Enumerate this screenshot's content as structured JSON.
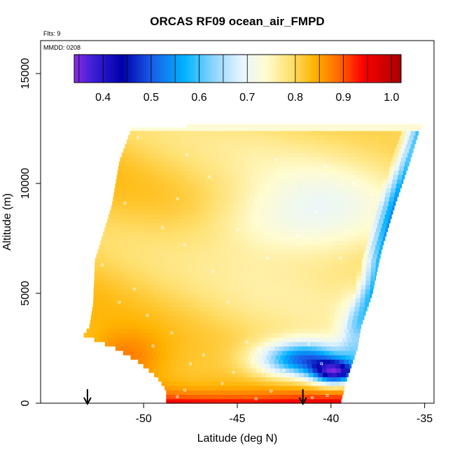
{
  "chart_data": {
    "type": "heatmap",
    "title": "ORCAS RF09 ocean_air_FMPD",
    "xlabel": "Latitude (deg N)",
    "ylabel": "Altitude (m)",
    "xlim": [
      -55.5,
      -34.5
    ],
    "ylim": [
      0,
      16500
    ],
    "x_ticks": [
      -50,
      -45,
      -40,
      -35
    ],
    "x_tick_labels": [
      "-50",
      "-45",
      "-40",
      "-35"
    ],
    "y_ticks": [
      0,
      5000,
      10000,
      15000
    ],
    "y_tick_labels": [
      "0",
      "5000",
      "10000",
      "15000"
    ],
    "annotations": {
      "flights": "Flts: 9",
      "date": "MMDD: 0208"
    },
    "colorbar": {
      "min": 0.34,
      "max": 1.02,
      "ticks": [
        0.4,
        0.5,
        0.6,
        0.7,
        0.8,
        0.9,
        1.0
      ],
      "tick_labels": [
        "0.4",
        "0.5",
        "0.6",
        "0.7",
        "0.8",
        "0.9",
        "1.0"
      ],
      "stops": [
        {
          "v": 0.34,
          "c": "#8a2be2"
        },
        {
          "v": 0.38,
          "c": "#3b1fd6"
        },
        {
          "v": 0.44,
          "c": "#0000aa"
        },
        {
          "v": 0.5,
          "c": "#1a5be8"
        },
        {
          "v": 0.57,
          "c": "#00b4ff"
        },
        {
          "v": 0.63,
          "c": "#8fd4ff"
        },
        {
          "v": 0.69,
          "c": "#e8f6ff"
        },
        {
          "v": 0.74,
          "c": "#fffcd0"
        },
        {
          "v": 0.79,
          "c": "#ffe070"
        },
        {
          "v": 0.84,
          "c": "#ffb300"
        },
        {
          "v": 0.89,
          "c": "#ff6a00"
        },
        {
          "v": 0.94,
          "c": "#ff0000"
        },
        {
          "v": 1.02,
          "c": "#a80000"
        }
      ]
    },
    "field_boundary": {
      "lat_south_edge": [
        [
          0,
          -48.8
        ],
        [
          600,
          -48.8
        ],
        [
          1200,
          -49.3
        ],
        [
          1900,
          -50.3
        ],
        [
          2500,
          -51.5
        ],
        [
          3100,
          -53.2
        ],
        [
          3500,
          -52.9
        ],
        [
          4500,
          -52.7
        ],
        [
          6500,
          -52.6
        ],
        [
          9000,
          -51.7
        ],
        [
          11000,
          -51.3
        ],
        [
          12400,
          -50.7
        ]
      ],
      "lat_north_edge": [
        [
          0,
          -39.5
        ],
        [
          1000,
          -39.2
        ],
        [
          2500,
          -38.6
        ],
        [
          3500,
          -38.4
        ],
        [
          5000,
          -37.8
        ],
        [
          7000,
          -37.3
        ],
        [
          9000,
          -36.6
        ],
        [
          11000,
          -35.8
        ],
        [
          12400,
          -35.3
        ],
        [
          12700,
          -35.0
        ]
      ],
      "top_altitude": 12400
    },
    "arrows_lat": [
      -53.0,
      -41.5
    ],
    "sample_points": [
      [
        -48.2,
        300
      ],
      [
        -47.8,
        600
      ],
      [
        -44.0,
        200
      ],
      [
        -43.2,
        550
      ],
      [
        -41.0,
        250
      ],
      [
        -40.2,
        350
      ],
      [
        -45.8,
        900
      ],
      [
        -42.5,
        1500
      ],
      [
        -40.5,
        1800
      ],
      [
        -45.2,
        1400
      ],
      [
        -47.5,
        1800
      ],
      [
        -46.8,
        2200
      ],
      [
        -43.8,
        2400
      ],
      [
        -44.5,
        2800
      ],
      [
        -41.2,
        2700
      ],
      [
        -49.5,
        2600
      ],
      [
        -48.5,
        3200
      ],
      [
        -45.5,
        4600
      ],
      [
        -49.8,
        4000
      ],
      [
        -50.5,
        5200
      ],
      [
        -46.3,
        6000
      ],
      [
        -43.4,
        6600
      ],
      [
        -47.8,
        7200
      ],
      [
        -49.0,
        8000
      ],
      [
        -45.0,
        7900
      ],
      [
        -41.8,
        7600
      ],
      [
        -48.2,
        9300
      ],
      [
        -46.5,
        10300
      ],
      [
        -44.0,
        9200
      ],
      [
        -40.3,
        10800
      ],
      [
        -51.0,
        9100
      ],
      [
        -50.3,
        12100
      ],
      [
        -47.7,
        11300
      ],
      [
        -52.2,
        6300
      ],
      [
        -39.5,
        6600
      ],
      [
        -40.8,
        8700
      ],
      [
        -38.8,
        10000
      ],
      [
        -37.8,
        9500
      ],
      [
        -42.9,
        11100
      ],
      [
        -51.3,
        4600
      ]
    ]
  }
}
